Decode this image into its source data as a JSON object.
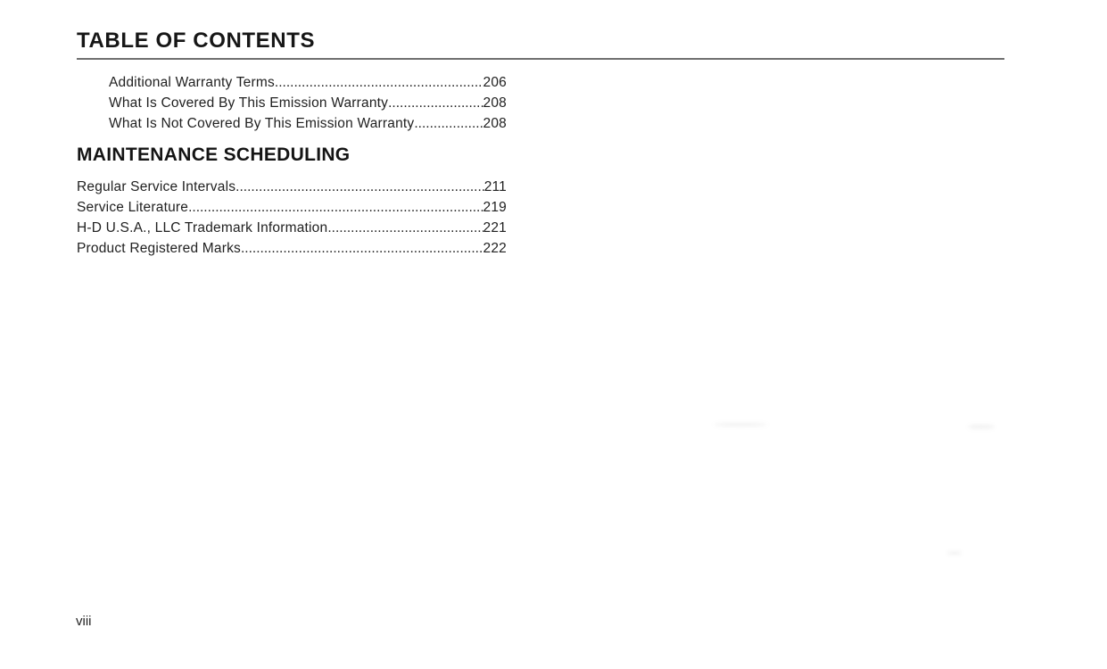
{
  "page": {
    "title": "TABLE OF CONTENTS",
    "folio": "viii"
  },
  "colors": {
    "background": "#ffffff",
    "text": "#212121",
    "rule": "#6f6f6f"
  },
  "toc": {
    "sections": [
      {
        "heading": "",
        "indented": true,
        "entries": [
          {
            "label": "Additional Warranty Terms",
            "page": "206"
          },
          {
            "label": "What Is Covered By This Emission Warranty",
            "page": "208"
          },
          {
            "label": "What Is Not Covered By This Emission Warranty",
            "page": "208"
          }
        ]
      },
      {
        "heading": "MAINTENANCE SCHEDULING",
        "indented": false,
        "entries": [
          {
            "label": "Regular Service Intervals",
            "page": "211"
          },
          {
            "label": "Service Literature",
            "page": "219"
          },
          {
            "label": "H-D U.S.A., LLC Trademark Information",
            "page": "221"
          },
          {
            "label": "Product Registered Marks",
            "page": "222"
          }
        ]
      }
    ]
  }
}
